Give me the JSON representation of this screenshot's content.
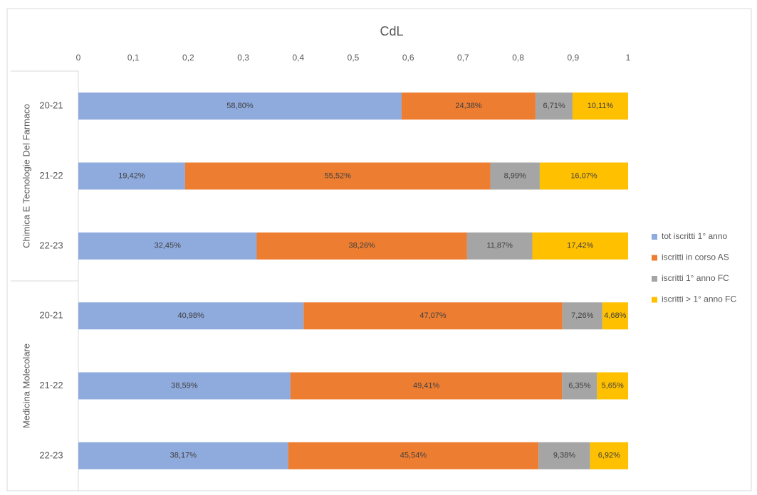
{
  "chart_data": {
    "type": "stacked-bar-horizontal",
    "title": "CdL",
    "groups": [
      {
        "label": "Chimica E Tecnologie Del Farmaco",
        "categories": [
          "20-21",
          "21-22",
          "22-23"
        ]
      },
      {
        "label": "Medicina Molecolare",
        "categories": [
          "20-21",
          "21-22",
          "22-23"
        ]
      }
    ],
    "series": [
      {
        "name": "tot iscritti 1° anno",
        "color": "#8faadc",
        "values": [
          0.588,
          0.1942,
          0.3245,
          0.4098,
          0.3859,
          0.3817
        ],
        "value_labels": [
          "58,80%",
          "19,42%",
          "32,45%",
          "40,98%",
          "38,59%",
          "38,17%"
        ]
      },
      {
        "name": "iscritti in corso AS",
        "color": "#ed7d31",
        "values": [
          0.2438,
          0.5552,
          0.3826,
          0.4707,
          0.4941,
          0.4554
        ],
        "value_labels": [
          "24,38%",
          "55,52%",
          "38,26%",
          "47,07%",
          "49,41%",
          "45,54%"
        ]
      },
      {
        "name": "iscritti 1° anno FC",
        "color": "#a5a5a5",
        "values": [
          0.0671,
          0.0899,
          0.1187,
          0.0726,
          0.0635,
          0.0938
        ],
        "value_labels": [
          "6,71%",
          "8,99%",
          "11,87%",
          "7,26%",
          "6,35%",
          "9,38%"
        ]
      },
      {
        "name": "iscritti > 1° anno FC",
        "color": "#ffc000",
        "values": [
          0.1011,
          0.1607,
          0.1742,
          0.0468,
          0.0565,
          0.0692
        ],
        "value_labels": [
          "10,11%",
          "16,07%",
          "17,42%",
          "4,68%",
          "5,65%",
          "6,92%"
        ]
      }
    ],
    "xlim": [
      0,
      1
    ],
    "xticks": [
      0,
      {
        "value": 0.1,
        "label": "0,1"
      },
      {
        "value": 0.2,
        "label": "0,2"
      },
      {
        "value": 0.3,
        "label": "0,3"
      },
      {
        "value": 0.4,
        "label": "0,4"
      },
      {
        "value": 0.5,
        "label": "0,5"
      },
      {
        "value": 0.6,
        "label": "0,6"
      },
      {
        "value": 0.7,
        "label": "0,7"
      },
      {
        "value": 0.8,
        "label": "0,8"
      },
      {
        "value": 0.9,
        "label": "0,9"
      },
      1
    ],
    "legend": "right",
    "grid": false
  }
}
